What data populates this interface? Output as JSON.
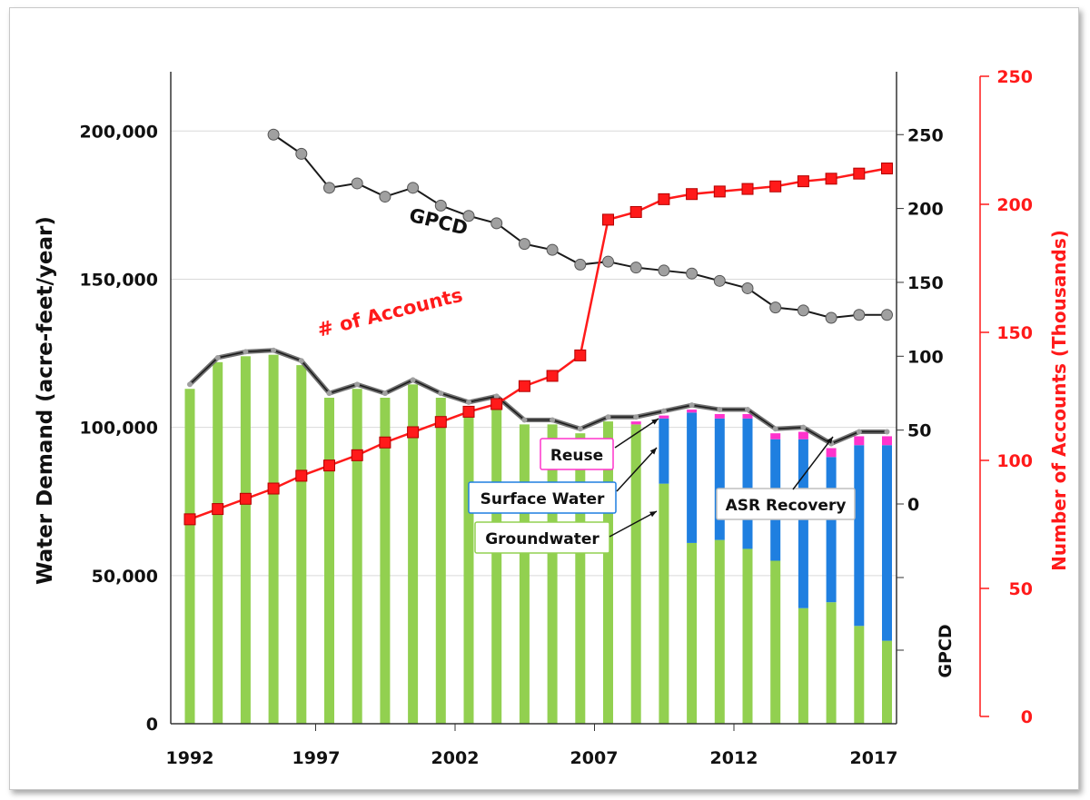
{
  "chart_data": {
    "type": "bar",
    "title": "",
    "x": [
      1992,
      1993,
      1994,
      1995,
      1996,
      1997,
      1998,
      1999,
      2000,
      2001,
      2002,
      2003,
      2004,
      2005,
      2006,
      2007,
      2008,
      2009,
      2010,
      2011,
      2012,
      2013,
      2014,
      2015,
      2016,
      2017
    ],
    "x_ticks": [
      "1992",
      "1997",
      "2002",
      "2007",
      "2012",
      "2017"
    ],
    "ylabel_left": "Water Demand (acre-feet/year)",
    "ylim_left": [
      0,
      220000
    ],
    "yticks_left": [
      "0",
      "50,000",
      "100,000",
      "150,000",
      "200,000"
    ],
    "ylabel_gpcd": "GPCD",
    "yticks_gpcd": [
      "0",
      "50",
      "100",
      "150",
      "200",
      "250"
    ],
    "ylabel_right": "Number of Accounts (Thousands)",
    "ylim_right": [
      0,
      250
    ],
    "yticks_right": [
      "0",
      "50",
      "100",
      "150",
      "200",
      "250"
    ],
    "series": [
      {
        "name": "Groundwater",
        "color": "#92d050",
        "values": [
          113000,
          122000,
          124000,
          124500,
          121000,
          110000,
          113000,
          110000,
          114500,
          110000,
          107000,
          109000,
          101000,
          101000,
          98000,
          102000,
          101000,
          81000,
          61000,
          62000,
          59000,
          55000,
          39000,
          41000,
          33000,
          28000
        ]
      },
      {
        "name": "Surface Water",
        "color": "#1f7fe0",
        "values": [
          0,
          0,
          0,
          0,
          0,
          0,
          0,
          0,
          0,
          0,
          0,
          0,
          0,
          0,
          0,
          0,
          0,
          22000,
          44000,
          41000,
          44000,
          41000,
          57000,
          49000,
          61000,
          66000
        ]
      },
      {
        "name": "Reuse",
        "color": "#ff33cc",
        "values": [
          0,
          0,
          0,
          0,
          0,
          0,
          0,
          0,
          0,
          0,
          0,
          0,
          0,
          0,
          0,
          0,
          1000,
          1000,
          1000,
          1500,
          1500,
          2000,
          2500,
          3000,
          3000,
          3000
        ]
      },
      {
        "name": "ASR Recovery",
        "color": "#a6a6a6",
        "values": [
          0,
          0,
          0,
          0,
          0,
          0,
          0,
          0,
          0,
          0,
          0,
          0,
          0,
          0,
          0,
          0,
          0,
          0,
          0,
          0,
          0,
          0,
          0,
          0,
          0,
          0
        ]
      },
      {
        "name": "GPCD",
        "type": "line",
        "axis": "gpcd",
        "color": "#1a1a1a",
        "marker_color": "#a0a0a0",
        "x": [
          1995,
          1996,
          1997,
          1998,
          1999,
          2000,
          2001,
          2002,
          2003,
          2004,
          2005,
          2006,
          2007,
          2008,
          2009,
          2010,
          2011,
          2012,
          2013,
          2014,
          2015,
          2016,
          2017
        ],
        "values": [
          250,
          237,
          214,
          217,
          208,
          214,
          202,
          195,
          190,
          176,
          172,
          162,
          164,
          160,
          158,
          156,
          151,
          146,
          133,
          131,
          126,
          128,
          128
        ]
      },
      {
        "name": "# of Accounts",
        "type": "line",
        "axis": "right",
        "color": "#ff1a1a",
        "x": [
          1992,
          1993,
          1994,
          1995,
          1996,
          1997,
          1998,
          1999,
          2000,
          2001,
          2002,
          2003,
          2004,
          2005,
          2006,
          2007,
          2008,
          2009,
          2010,
          2011,
          2012,
          2013,
          2014,
          2015,
          2016,
          2017
        ],
        "values": [
          77,
          81,
          85,
          89,
          94,
          98,
          102,
          107,
          111,
          115,
          119,
          122,
          129,
          133,
          141,
          194,
          197,
          202,
          204,
          205,
          206,
          207,
          209,
          210,
          212,
          214
        ]
      }
    ],
    "annotations": [
      "Reuse",
      "Surface Water",
      "Groundwater",
      "ASR Recovery"
    ],
    "grid": true
  }
}
